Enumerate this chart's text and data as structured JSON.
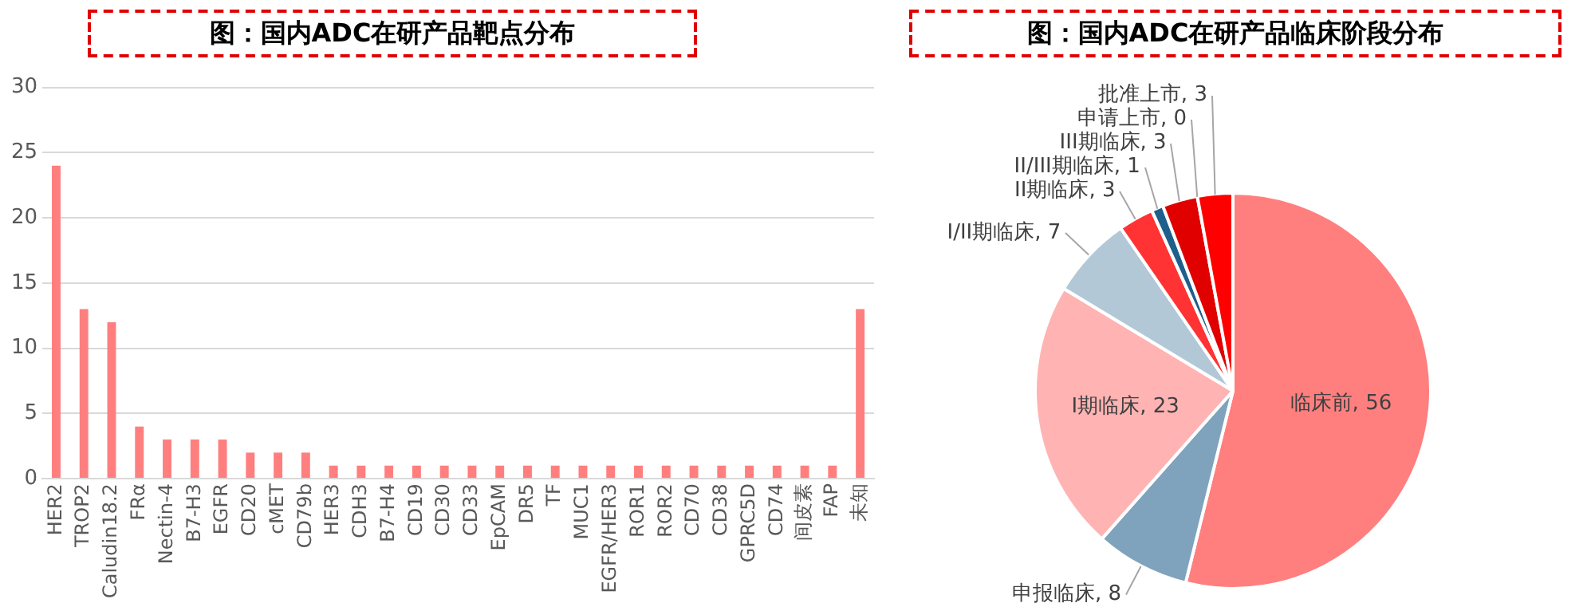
{
  "chart_data": [
    {
      "type": "bar",
      "title": "图：国内ADC在研产品靶点分布",
      "categories": [
        "HER2",
        "TROP2",
        "Caludin18.2",
        "FRα",
        "Nectin-4",
        "B7-H3",
        "EGFR",
        "CD20",
        "cMET",
        "CD79b",
        "HER3",
        "CDH3",
        "B7-H4",
        "CD19",
        "CD30",
        "CD33",
        "EpCAM",
        "DR5",
        "TF",
        "MUC1",
        "EGFR/HER3",
        "ROR1",
        "ROR2",
        "CD70",
        "CD38",
        "GPRC5D",
        "CD74",
        "间皮素",
        "FAP",
        "未知"
      ],
      "values": [
        24,
        13,
        12,
        4,
        3,
        3,
        3,
        2,
        2,
        2,
        1,
        1,
        1,
        1,
        1,
        1,
        1,
        1,
        1,
        1,
        1,
        1,
        1,
        1,
        1,
        1,
        1,
        1,
        1,
        13
      ],
      "color": "#ff7f7f",
      "ylim": [
        0,
        30
      ],
      "yticks": [
        0,
        5,
        10,
        15,
        20,
        25,
        30
      ],
      "grid": "y",
      "legend": false
    },
    {
      "type": "pie",
      "title": "图：国内ADC在研产品临床阶段分布",
      "categories": [
        "临床前",
        "申报临床",
        "I期临床",
        "I/II期临床",
        "II期临床",
        "II/III期临床",
        "III期临床",
        "申请上市",
        "批准上市"
      ],
      "values": [
        56,
        8,
        23,
        7,
        3,
        1,
        3,
        0,
        3
      ],
      "colors": [
        "#ff7f7f",
        "#7fa3bd",
        "#ffb3b3",
        "#b3c8d6",
        "#ff3333",
        "#1f5f8b",
        "#e00000",
        "#ff5050",
        "#ff0000"
      ],
      "value_labels": [
        ", 56",
        ", 8",
        ", 23",
        ", 7",
        ", 3",
        ", 1",
        ", 3",
        ", 0",
        ", 3"
      ],
      "legend": false
    }
  ]
}
